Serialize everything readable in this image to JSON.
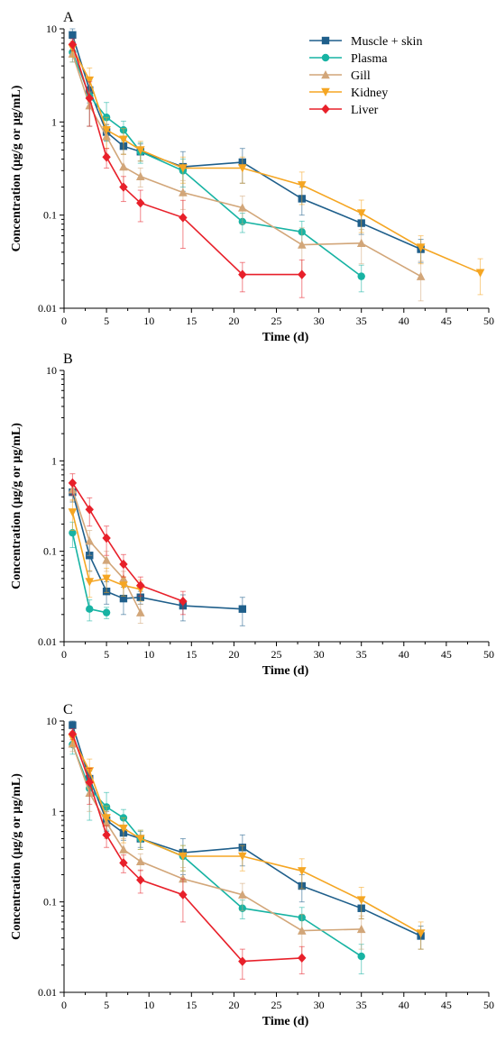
{
  "legend": [
    {
      "name": "Muscle + skin",
      "color": "#1f5f8b",
      "marker": "square"
    },
    {
      "name": "Plasma",
      "color": "#17b3a3",
      "marker": "circle"
    },
    {
      "name": "Gill",
      "color": "#d2a679",
      "marker": "triangle-up"
    },
    {
      "name": "Kidney",
      "color": "#f5a623",
      "marker": "triangle-down"
    },
    {
      "name": "Liver",
      "color": "#e8202a",
      "marker": "diamond"
    }
  ],
  "chart_data": [
    {
      "type": "line",
      "panel_label": "A",
      "xlabel": "Time (d)",
      "ylabel": "Concentration (μg/g or μg/mL)",
      "xlim": [
        0,
        50
      ],
      "ylim": [
        0.01,
        10
      ],
      "yscale": "log",
      "xticks": [
        "0",
        "5",
        "10",
        "15",
        "20",
        "25",
        "30",
        "35",
        "40",
        "45",
        "50"
      ],
      "yticks": [
        "0.01",
        "0.1",
        "1",
        "10"
      ],
      "legend_position": "top-right",
      "series": [
        {
          "name": "Muscle + skin",
          "points": [
            [
              1,
              8.6,
              1.5
            ],
            [
              3,
              2.2,
              0.6
            ],
            [
              5,
              0.78,
              0.15
            ],
            [
              7,
              0.55,
              0.1
            ],
            [
              9,
              0.48,
              0.1
            ],
            [
              14,
              0.33,
              0.15
            ],
            [
              21,
              0.37,
              0.15
            ],
            [
              28,
              0.15,
              0.05
            ],
            [
              35,
              0.082,
              0.02
            ],
            [
              42,
              0.043,
              0.012
            ]
          ]
        },
        {
          "name": "Plasma",
          "points": [
            [
              1,
              5.6,
              1.2
            ],
            [
              3,
              1.9,
              1.0
            ],
            [
              5,
              1.12,
              0.5
            ],
            [
              7,
              0.82,
              0.2
            ],
            [
              9,
              0.48,
              0.12
            ],
            [
              14,
              0.3,
              0.1
            ],
            [
              21,
              0.085,
              0.02
            ],
            [
              28,
              0.066,
              0.02
            ],
            [
              35,
              0.022,
              0.007
            ]
          ]
        },
        {
          "name": "Gill",
          "points": [
            [
              1,
              5.4,
              1.0
            ],
            [
              3,
              1.5,
              0.6
            ],
            [
              5,
              0.7,
              0.25
            ],
            [
              7,
              0.33,
              0.12
            ],
            [
              9,
              0.26,
              0.06
            ],
            [
              14,
              0.175,
              0.06
            ],
            [
              21,
              0.12,
              0.04
            ],
            [
              28,
              0.048,
              0.025
            ],
            [
              35,
              0.05,
              0.02
            ],
            [
              42,
              0.022,
              0.01
            ]
          ]
        },
        {
          "name": "Kidney",
          "points": [
            [
              1,
              6.2,
              1.2
            ],
            [
              3,
              2.8,
              1.0
            ],
            [
              5,
              0.82,
              0.3
            ],
            [
              7,
              0.65,
              0.2
            ],
            [
              9,
              0.5,
              0.12
            ],
            [
              14,
              0.32,
              0.1
            ],
            [
              21,
              0.32,
              0.1
            ],
            [
              28,
              0.21,
              0.08
            ],
            [
              35,
              0.105,
              0.04
            ],
            [
              42,
              0.045,
              0.015
            ],
            [
              49,
              0.024,
              0.01
            ]
          ]
        },
        {
          "name": "Liver",
          "points": [
            [
              1,
              6.8,
              1.0
            ],
            [
              3,
              1.8,
              0.9
            ],
            [
              5,
              0.42,
              0.1
            ],
            [
              7,
              0.2,
              0.06
            ],
            [
              9,
              0.135,
              0.05
            ],
            [
              14,
              0.094,
              0.05
            ],
            [
              21,
              0.023,
              0.008
            ],
            [
              28,
              0.023,
              0.01
            ]
          ]
        }
      ]
    },
    {
      "type": "line",
      "panel_label": "B",
      "xlabel": "Time (d)",
      "ylabel": "Concentration (μg/g or μg/mL)",
      "xlim": [
        0,
        50
      ],
      "ylim": [
        0.01,
        10
      ],
      "yscale": "log",
      "xticks": [
        "0",
        "5",
        "10",
        "15",
        "20",
        "25",
        "30",
        "35",
        "40",
        "45",
        "50"
      ],
      "yticks": [
        "0.01",
        "0.1",
        "1",
        "10"
      ],
      "series": [
        {
          "name": "Muscle + skin",
          "points": [
            [
              1,
              0.45,
              0.1
            ],
            [
              3,
              0.09,
              0.03
            ],
            [
              5,
              0.036,
              0.01
            ],
            [
              7,
              0.03,
              0.01
            ],
            [
              9,
              0.031,
              0.005
            ],
            [
              14,
              0.025,
              0.008
            ],
            [
              21,
              0.023,
              0.008
            ]
          ]
        },
        {
          "name": "Plasma",
          "points": [
            [
              1,
              0.16,
              0.05
            ],
            [
              3,
              0.023,
              0.006
            ],
            [
              5,
              0.021,
              0.003
            ]
          ]
        },
        {
          "name": "Gill",
          "points": [
            [
              1,
              0.48,
              0.12
            ],
            [
              3,
              0.13,
              0.04
            ],
            [
              5,
              0.08,
              0.02
            ],
            [
              7,
              0.05,
              0.01
            ],
            [
              9,
              0.021,
              0.005
            ]
          ]
        },
        {
          "name": "Kidney",
          "points": [
            [
              1,
              0.27,
              0.1
            ],
            [
              3,
              0.046,
              0.015
            ],
            [
              5,
              0.05,
              0.015
            ],
            [
              7,
              0.042,
              0.01
            ],
            [
              9,
              0.038,
              0.01
            ]
          ]
        },
        {
          "name": "Liver",
          "points": [
            [
              1,
              0.57,
              0.15
            ],
            [
              3,
              0.29,
              0.1
            ],
            [
              5,
              0.14,
              0.05
            ],
            [
              7,
              0.072,
              0.02
            ],
            [
              9,
              0.042,
              0.01
            ],
            [
              14,
              0.028,
              0.008
            ]
          ]
        }
      ]
    },
    {
      "type": "line",
      "panel_label": "C",
      "xlabel": "Time (d)",
      "ylabel": "Concentration (μg/g or μg/mL)",
      "xlim": [
        0,
        50
      ],
      "ylim": [
        0.01,
        10
      ],
      "yscale": "log",
      "xticks": [
        "0",
        "5",
        "10",
        "15",
        "20",
        "25",
        "30",
        "35",
        "40",
        "45",
        "50"
      ],
      "yticks": [
        "0.01",
        "0.1",
        "1",
        "10"
      ],
      "series": [
        {
          "name": "Muscle + skin",
          "points": [
            [
              1,
              9.0,
              1.5
            ],
            [
              3,
              2.3,
              0.6
            ],
            [
              5,
              0.8,
              0.2
            ],
            [
              7,
              0.58,
              0.1
            ],
            [
              9,
              0.5,
              0.1
            ],
            [
              14,
              0.35,
              0.15
            ],
            [
              21,
              0.4,
              0.15
            ],
            [
              28,
              0.15,
              0.05
            ],
            [
              35,
              0.085,
              0.02
            ],
            [
              42,
              0.042,
              0.012
            ]
          ]
        },
        {
          "name": "Plasma",
          "points": [
            [
              1,
              5.5,
              1.2
            ],
            [
              3,
              1.8,
              1.0
            ],
            [
              5,
              1.12,
              0.5
            ],
            [
              7,
              0.85,
              0.2
            ],
            [
              9,
              0.5,
              0.12
            ],
            [
              14,
              0.32,
              0.1
            ],
            [
              21,
              0.085,
              0.02
            ],
            [
              28,
              0.067,
              0.02
            ],
            [
              35,
              0.025,
              0.009
            ]
          ]
        },
        {
          "name": "Gill",
          "points": [
            [
              1,
              5.6,
              1.0
            ],
            [
              3,
              1.6,
              0.6
            ],
            [
              5,
              0.75,
              0.25
            ],
            [
              7,
              0.38,
              0.12
            ],
            [
              9,
              0.28,
              0.06
            ],
            [
              14,
              0.18,
              0.06
            ],
            [
              21,
              0.12,
              0.04
            ],
            [
              28,
              0.048,
              0.025
            ],
            [
              35,
              0.05,
              0.02
            ]
          ]
        },
        {
          "name": "Kidney",
          "points": [
            [
              1,
              6.5,
              1.2
            ],
            [
              3,
              2.8,
              1.0
            ],
            [
              5,
              0.85,
              0.3
            ],
            [
              7,
              0.65,
              0.2
            ],
            [
              9,
              0.5,
              0.12
            ],
            [
              14,
              0.32,
              0.1
            ],
            [
              21,
              0.32,
              0.1
            ],
            [
              28,
              0.22,
              0.08
            ],
            [
              35,
              0.105,
              0.04
            ],
            [
              42,
              0.045,
              0.015
            ]
          ]
        },
        {
          "name": "Liver",
          "points": [
            [
              1,
              7.2,
              1.0
            ],
            [
              3,
              2.1,
              0.9
            ],
            [
              5,
              0.55,
              0.15
            ],
            [
              7,
              0.27,
              0.06
            ],
            [
              9,
              0.175,
              0.05
            ],
            [
              14,
              0.12,
              0.06
            ],
            [
              21,
              0.022,
              0.008
            ],
            [
              28,
              0.024,
              0.008
            ]
          ]
        }
      ]
    }
  ]
}
